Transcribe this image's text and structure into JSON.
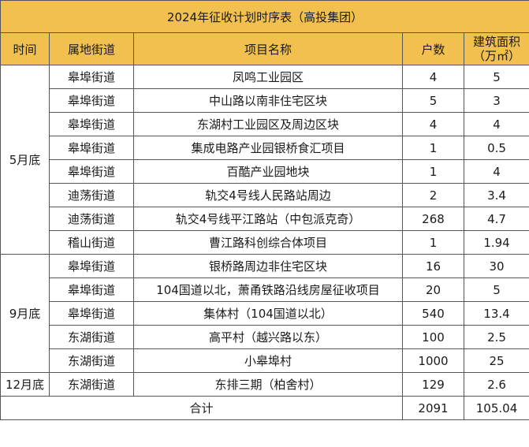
{
  "title": "2024年征收计划时序表（高投集团）",
  "headers": {
    "time": "时间",
    "street": "属地街道",
    "project": "项目名称",
    "households": "户数",
    "area": "建筑面积（万㎡）"
  },
  "groups": [
    {
      "period": "5月底",
      "rows": [
        {
          "street": "皋埠街道",
          "project": "凤鸣工业园区",
          "households": "4",
          "area": "5"
        },
        {
          "street": "皋埠街道",
          "project": "中山路以南非住宅区块",
          "households": "5",
          "area": "3"
        },
        {
          "street": "皋埠街道",
          "project": "东湖村工业园区及周边区块",
          "households": "4",
          "area": "4"
        },
        {
          "street": "皋埠街道",
          "project": "集成电路产业园银桥食汇项目",
          "households": "1",
          "area": "0.5"
        },
        {
          "street": "皋埠街道",
          "project": "百酷产业园地块",
          "households": "1",
          "area": "4"
        },
        {
          "street": "迪荡街道",
          "project": "轨交4号线人民路站周边",
          "households": "2",
          "area": "3.4"
        },
        {
          "street": "迪荡街道",
          "project": "轨交4号线平江路站（中包派克奇）",
          "households": "268",
          "area": "4.7"
        },
        {
          "street": "稽山街道",
          "project": "曹江路科创综合体项目",
          "households": "1",
          "area": "1.94"
        }
      ]
    },
    {
      "period": "9月底",
      "rows": [
        {
          "street": "皋埠街道",
          "project": "银桥路周边非住宅区块",
          "households": "16",
          "area": "30"
        },
        {
          "street": "皋埠街道",
          "project": "104国道以北，萧甬铁路沿线房屋征收项目",
          "households": "20",
          "area": "5"
        },
        {
          "street": "皋埠街道",
          "project": "集体村（104国道以北）",
          "households": "540",
          "area": "13.4"
        },
        {
          "street": "东湖街道",
          "project": "高平村（越兴路以东）",
          "households": "100",
          "area": "2.5"
        },
        {
          "street": "东湖街道",
          "project": "小皋埠村",
          "households": "1000",
          "area": "25"
        }
      ]
    },
    {
      "period": "12月底",
      "rows": [
        {
          "street": "东湖街道",
          "project": "东排三期（柏舍村）",
          "households": "129",
          "area": "2.6"
        }
      ]
    }
  ],
  "total": {
    "label": "合计",
    "households": "2091",
    "area": "105.04"
  },
  "colors": {
    "header_bg": "#f2c04f",
    "border": "#555555"
  }
}
